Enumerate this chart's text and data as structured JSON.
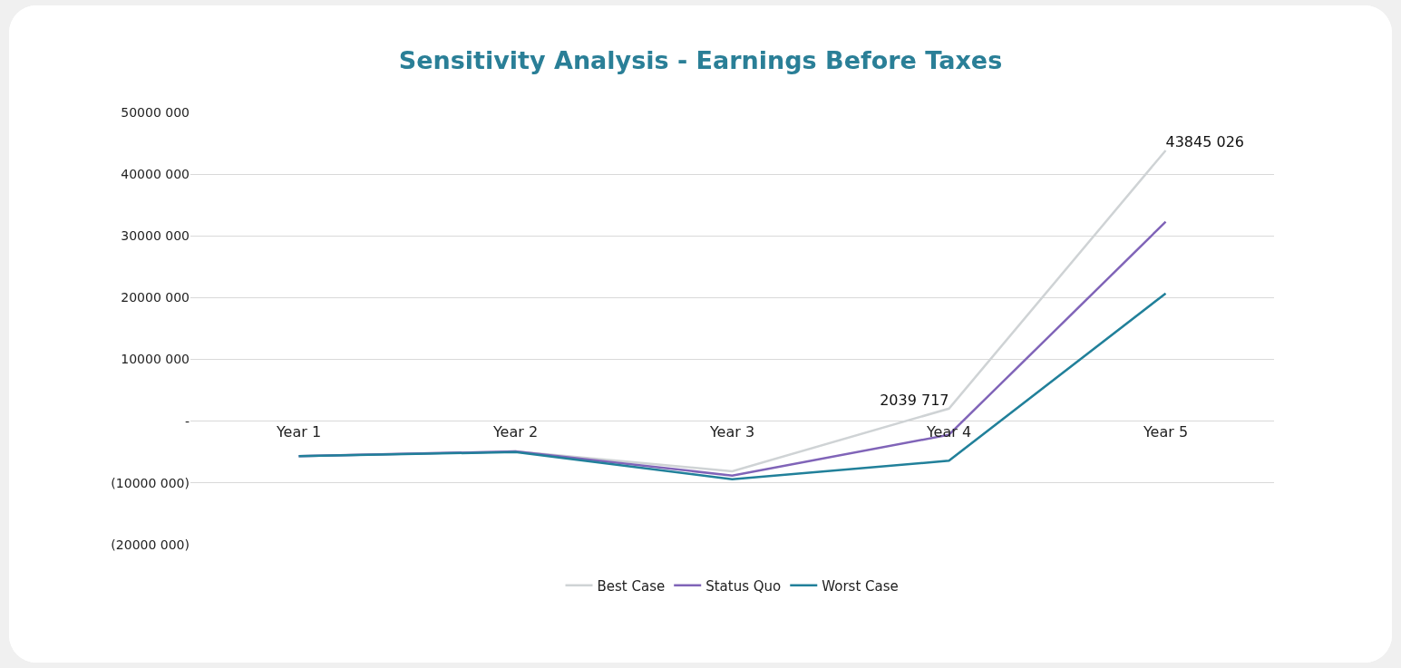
{
  "chart_data": {
    "type": "line",
    "title": "Sensitivity Analysis - Earnings Before Taxes",
    "categories": [
      "Year 1",
      "Year 2",
      "Year 3",
      "Year 4",
      "Year 5"
    ],
    "series": [
      {
        "name": "Best Case",
        "color": "#cfd3d5",
        "values": [
          -5650000,
          -4900000,
          -8100000,
          2039717,
          43845026
        ],
        "value_labels": [
          null,
          null,
          null,
          "2039 717",
          "43845 026"
        ]
      },
      {
        "name": "Status Quo",
        "color": "#8064b8",
        "values": [
          -5650000,
          -4900000,
          -8800000,
          -2200000,
          32300000
        ]
      },
      {
        "name": "Worst Case",
        "color": "#21809a",
        "values": [
          -5650000,
          -5000000,
          -9400000,
          -6400000,
          20700000
        ]
      }
    ],
    "ylim": [
      -20000000,
      50000000
    ],
    "yticks": [
      {
        "value": -20000000,
        "label": "(20000 000)"
      },
      {
        "value": -10000000,
        "label": "(10000 000)"
      },
      {
        "value": 0,
        "label": "-"
      },
      {
        "value": 10000000,
        "label": "10000 000"
      },
      {
        "value": 20000000,
        "label": "20000 000"
      },
      {
        "value": 30000000,
        "label": "30000 000"
      },
      {
        "value": 40000000,
        "label": "40000 000"
      },
      {
        "value": 50000000,
        "label": "50000 000"
      }
    ],
    "grid": "y",
    "legend": "bottom",
    "marker": "none",
    "line_style": "solid"
  }
}
